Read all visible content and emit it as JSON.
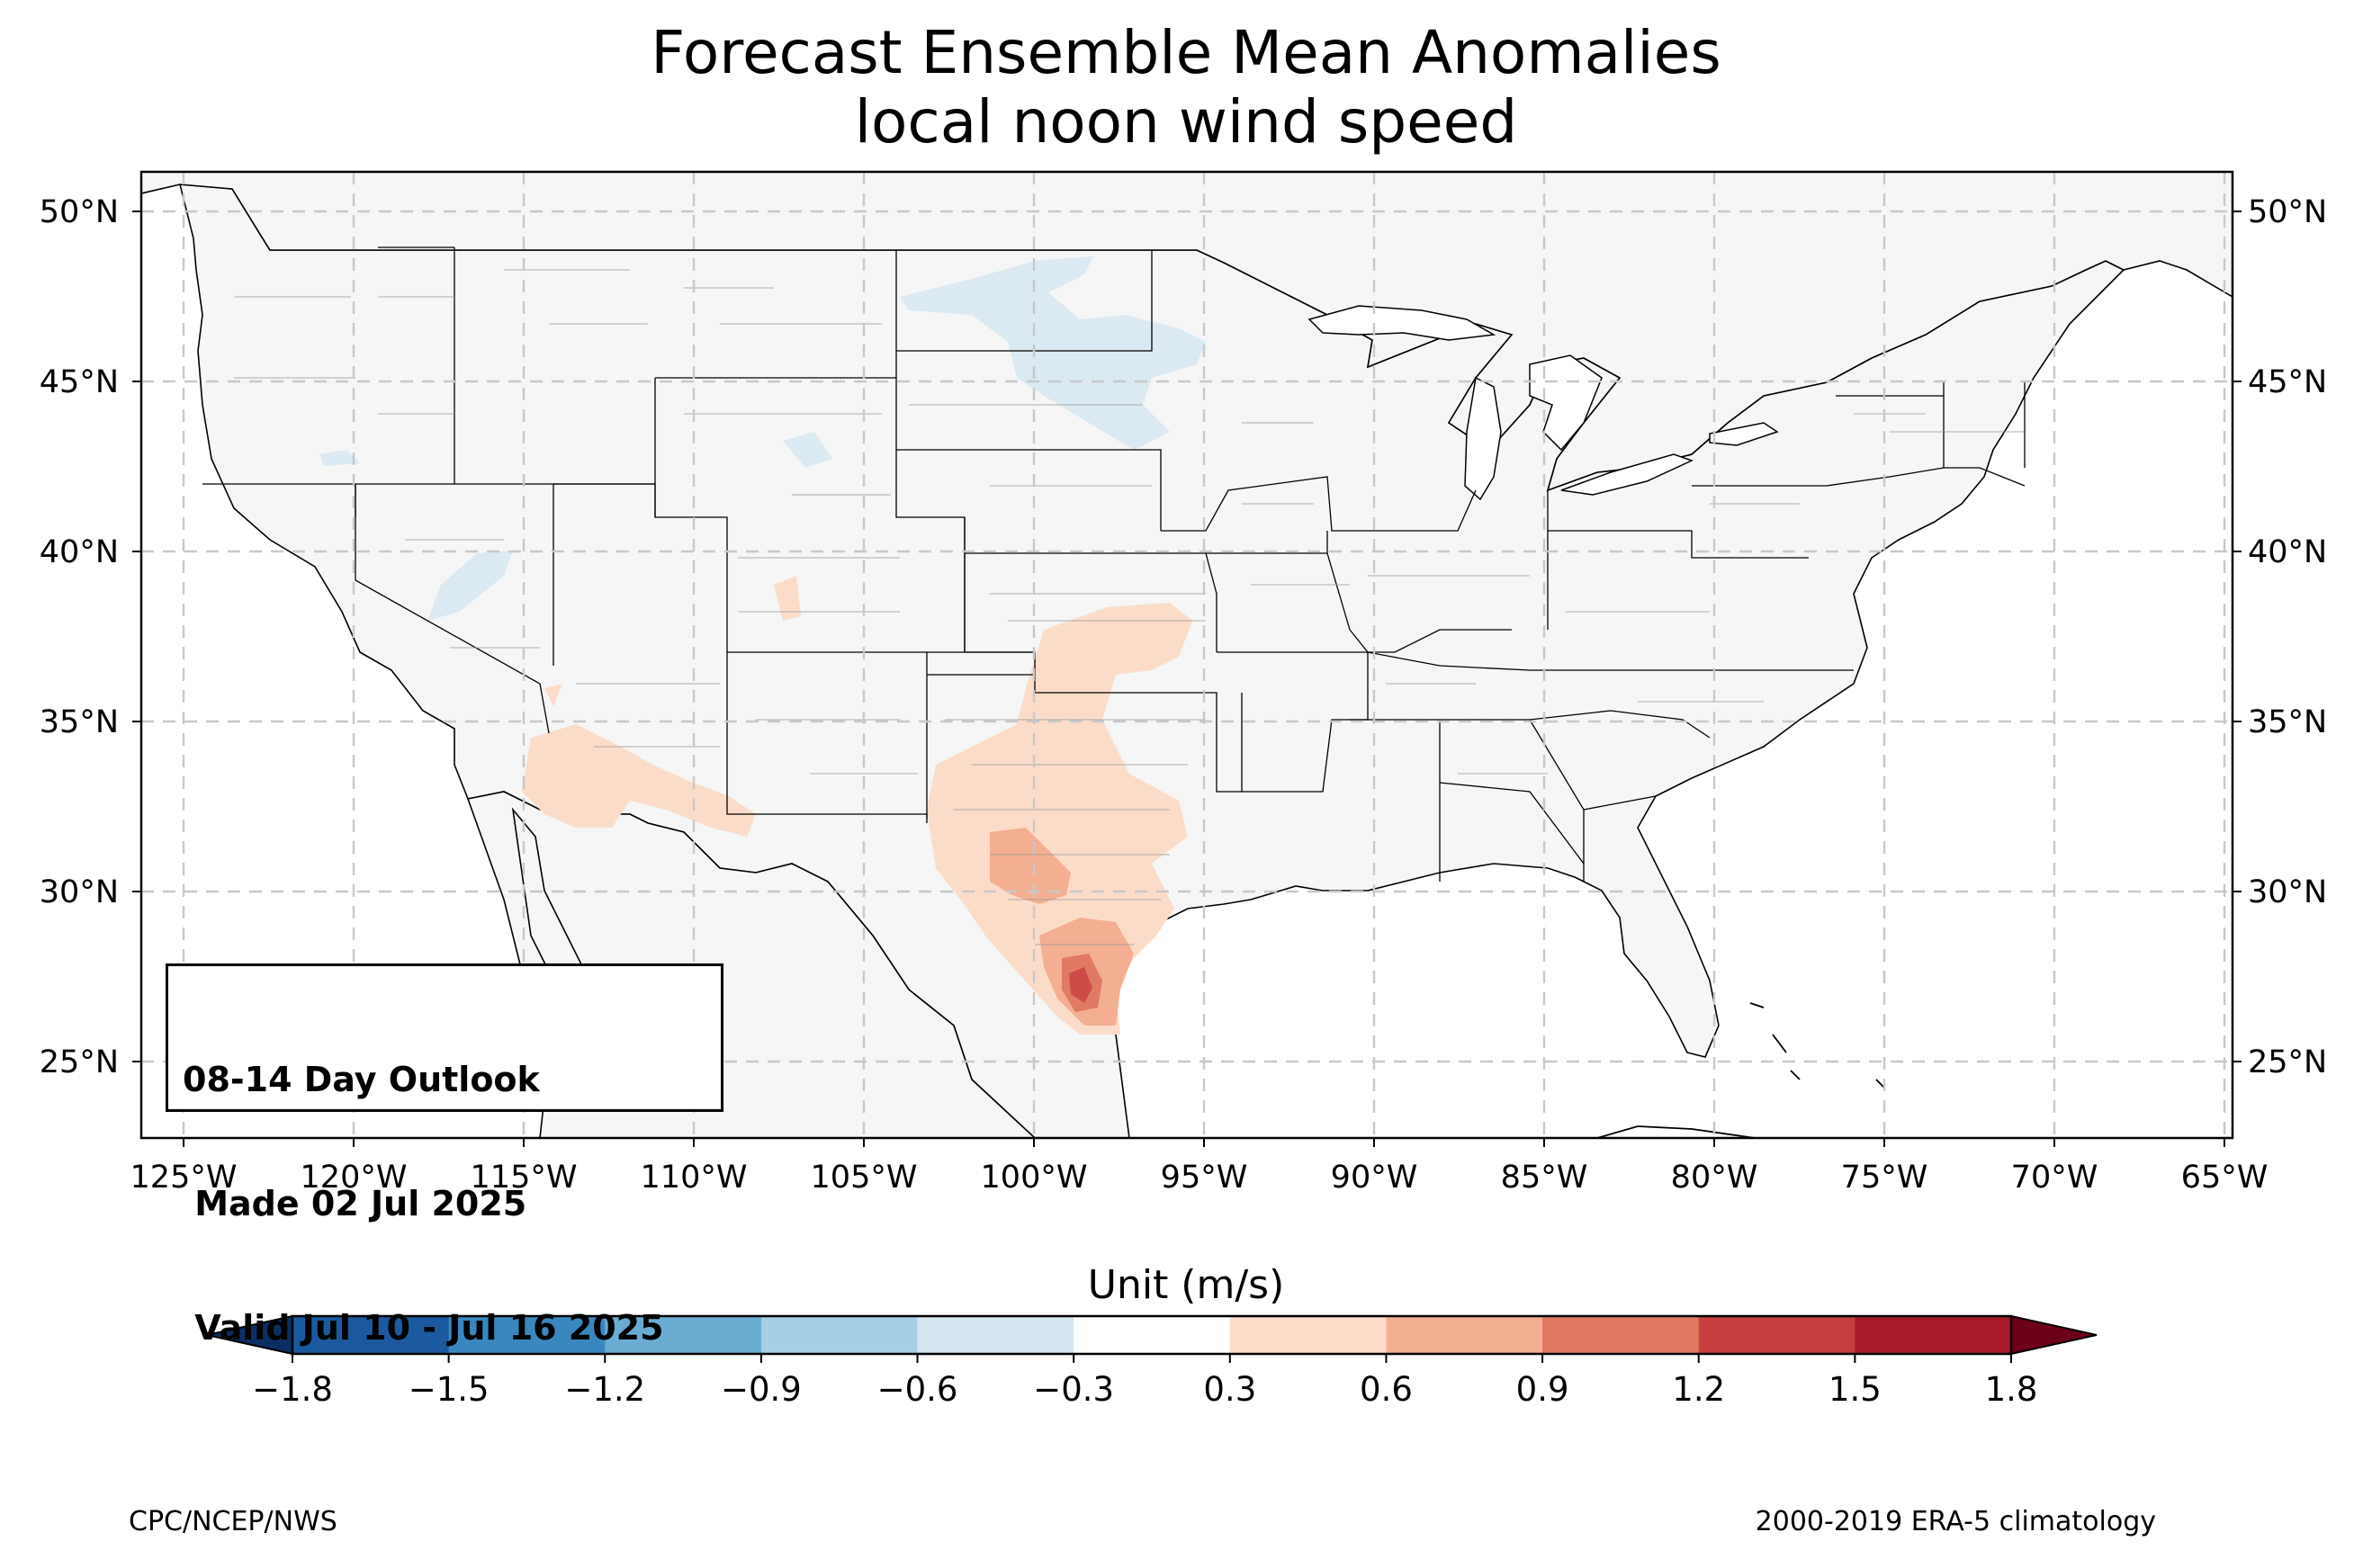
{
  "title": {
    "line1": "Forecast Ensemble Mean Anomalies",
    "line2": "local noon wind speed"
  },
  "map": {
    "projection": "PlateCarree",
    "lon_range": [
      -126.3,
      -64.9
    ],
    "lat_range": [
      22.8,
      51.3
    ],
    "lon_ticks": [
      "125°W",
      "120°W",
      "115°W",
      "110°W",
      "105°W",
      "100°W",
      "95°W",
      "90°W",
      "85°W",
      "80°W",
      "75°W",
      "70°W",
      "65°W"
    ],
    "lat_ticks": [
      "25°N",
      "30°N",
      "35°N",
      "40°N",
      "45°N",
      "50°N"
    ],
    "gridlines": "dashed",
    "land_color": "#f5f6f5",
    "border_color": "#000000",
    "county_color": "#9a9a9a"
  },
  "anomaly_regions": [
    {
      "region": "South Texas coast",
      "level": "1.2 to 1.5"
    },
    {
      "region": "South Texas / Rio Grande valley",
      "level": "0.9 to 1.2"
    },
    {
      "region": "West Texas / Edwards Plateau",
      "level": "0.6 to 0.9"
    },
    {
      "region": "Texas, Oklahoma and Kansas",
      "level": "0.3 to 0.6"
    },
    {
      "region": "Arizona and southern California",
      "level": "0.3 to 0.6"
    },
    {
      "region": "North Dakota and South Dakota",
      "level": "-0.6 to -0.3"
    },
    {
      "region": "Northern Nevada",
      "level": "-0.6 to -0.3"
    }
  ],
  "outlook_box": {
    "line1": "08-14 Day Outlook",
    "line2": " Made 02 Jul 2025",
    "line3": " Valid Jul 10 - Jul 16 2025"
  },
  "colorbar": {
    "title": "Unit (m/s)",
    "tick_labels": [
      "−1.8",
      "−1.5",
      "−1.2",
      "−0.9",
      "−0.6",
      "−0.3",
      "0.3",
      "0.6",
      "0.9",
      "1.2",
      "1.5",
      "1.8"
    ],
    "levels": [
      -1.8,
      -1.5,
      -1.2,
      -0.9,
      -0.6,
      -0.3,
      0.3,
      0.6,
      0.9,
      1.2,
      1.5,
      1.8
    ],
    "colors": [
      "#1c5aa0",
      "#3a87c0",
      "#6aabd2",
      "#a7cfe4",
      "#d6e6f1",
      "#ffffff",
      "#fbdcc8",
      "#f4ae91",
      "#e17a63",
      "#c63e3f",
      "#a61a2a"
    ],
    "extend_low_color": "#0b2f63",
    "extend_high_color": "#6b0016"
  },
  "footer": {
    "left": "CPC/NCEP/NWS",
    "right": "2000-2019 ERA-5 climatology"
  }
}
